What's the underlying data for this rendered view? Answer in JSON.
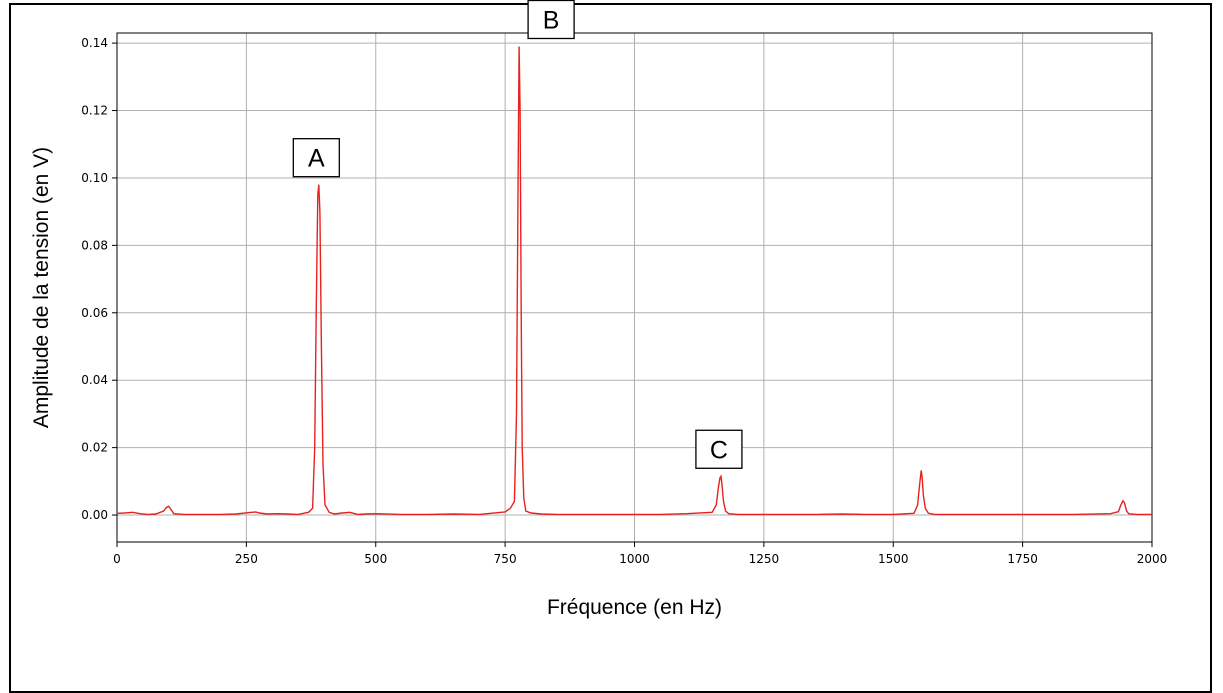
{
  "chart_data": {
    "type": "line",
    "xlabel": "Fréquence (en Hz)",
    "ylabel": "Amplitude de la tension (en V)",
    "xlim": [
      0,
      2000
    ],
    "ylim": [
      -0.008,
      0.143
    ],
    "xticks": [
      0,
      250,
      500,
      750,
      1000,
      1250,
      1500,
      1750,
      2000
    ],
    "xtick_labels": [
      "0",
      "250",
      "500",
      "750",
      "1000",
      "1250",
      "1500",
      "1750",
      "2000"
    ],
    "yticks": [
      0.0,
      0.02,
      0.04,
      0.06,
      0.08,
      0.1,
      0.12,
      0.14
    ],
    "ytick_labels": [
      "0.00",
      "0.02",
      "0.04",
      "0.06",
      "0.08",
      "0.10",
      "0.12",
      "0.14"
    ],
    "grid": true,
    "line_color": "#e8211f",
    "series": [
      {
        "x": [
          0,
          15,
          30,
          45,
          60,
          75,
          90,
          95,
          100,
          105,
          110,
          130,
          160,
          200,
          230,
          260,
          268,
          275,
          290,
          310,
          330,
          350,
          370,
          378,
          382,
          385,
          388,
          390,
          392,
          395,
          398,
          402,
          410,
          420,
          435,
          450,
          465,
          480,
          500,
          550,
          600,
          650,
          700,
          750,
          760,
          768,
          772,
          775,
          777,
          779,
          781,
          783,
          786,
          790,
          800,
          820,
          850,
          900,
          950,
          1000,
          1050,
          1100,
          1150,
          1158,
          1162,
          1165,
          1167,
          1169,
          1172,
          1176,
          1182,
          1200,
          1250,
          1300,
          1350,
          1400,
          1450,
          1500,
          1540,
          1547,
          1551,
          1554,
          1556,
          1558,
          1562,
          1568,
          1580,
          1650,
          1750,
          1850,
          1920,
          1935,
          1940,
          1944,
          1947,
          1951,
          1955,
          1970,
          2000
        ],
        "y": [
          0.0005,
          0.0006,
          0.0008,
          0.0004,
          0.0002,
          0.0003,
          0.0012,
          0.0022,
          0.0026,
          0.0015,
          0.0004,
          0.0002,
          0.0002,
          0.0002,
          0.0003,
          0.0008,
          0.0009,
          0.0006,
          0.0003,
          0.0004,
          0.0003,
          0.0002,
          0.0008,
          0.002,
          0.02,
          0.06,
          0.095,
          0.098,
          0.09,
          0.05,
          0.015,
          0.003,
          0.0008,
          0.0003,
          0.0006,
          0.0008,
          0.0002,
          0.0003,
          0.0004,
          0.0002,
          0.0002,
          0.0003,
          0.0002,
          0.0009,
          0.002,
          0.004,
          0.03,
          0.1,
          0.139,
          0.12,
          0.06,
          0.02,
          0.005,
          0.0012,
          0.0006,
          0.0003,
          0.0002,
          0.0002,
          0.0002,
          0.0002,
          0.0002,
          0.0004,
          0.0008,
          0.003,
          0.008,
          0.011,
          0.0115,
          0.009,
          0.004,
          0.0012,
          0.0004,
          0.0002,
          0.0002,
          0.0002,
          0.0002,
          0.0003,
          0.0002,
          0.0002,
          0.0005,
          0.003,
          0.009,
          0.0132,
          0.011,
          0.006,
          0.002,
          0.0005,
          0.0002,
          0.0002,
          0.0002,
          0.0002,
          0.0004,
          0.001,
          0.003,
          0.0042,
          0.0035,
          0.0012,
          0.0004,
          0.0002,
          0.0002
        ]
      }
    ],
    "annotations": [
      {
        "text": "A",
        "x": 389,
        "y": 0.098
      },
      {
        "text": "B",
        "x": 777,
        "y": 0.139
      },
      {
        "text": "C",
        "x": 1167,
        "y": 0.0115
      }
    ]
  }
}
